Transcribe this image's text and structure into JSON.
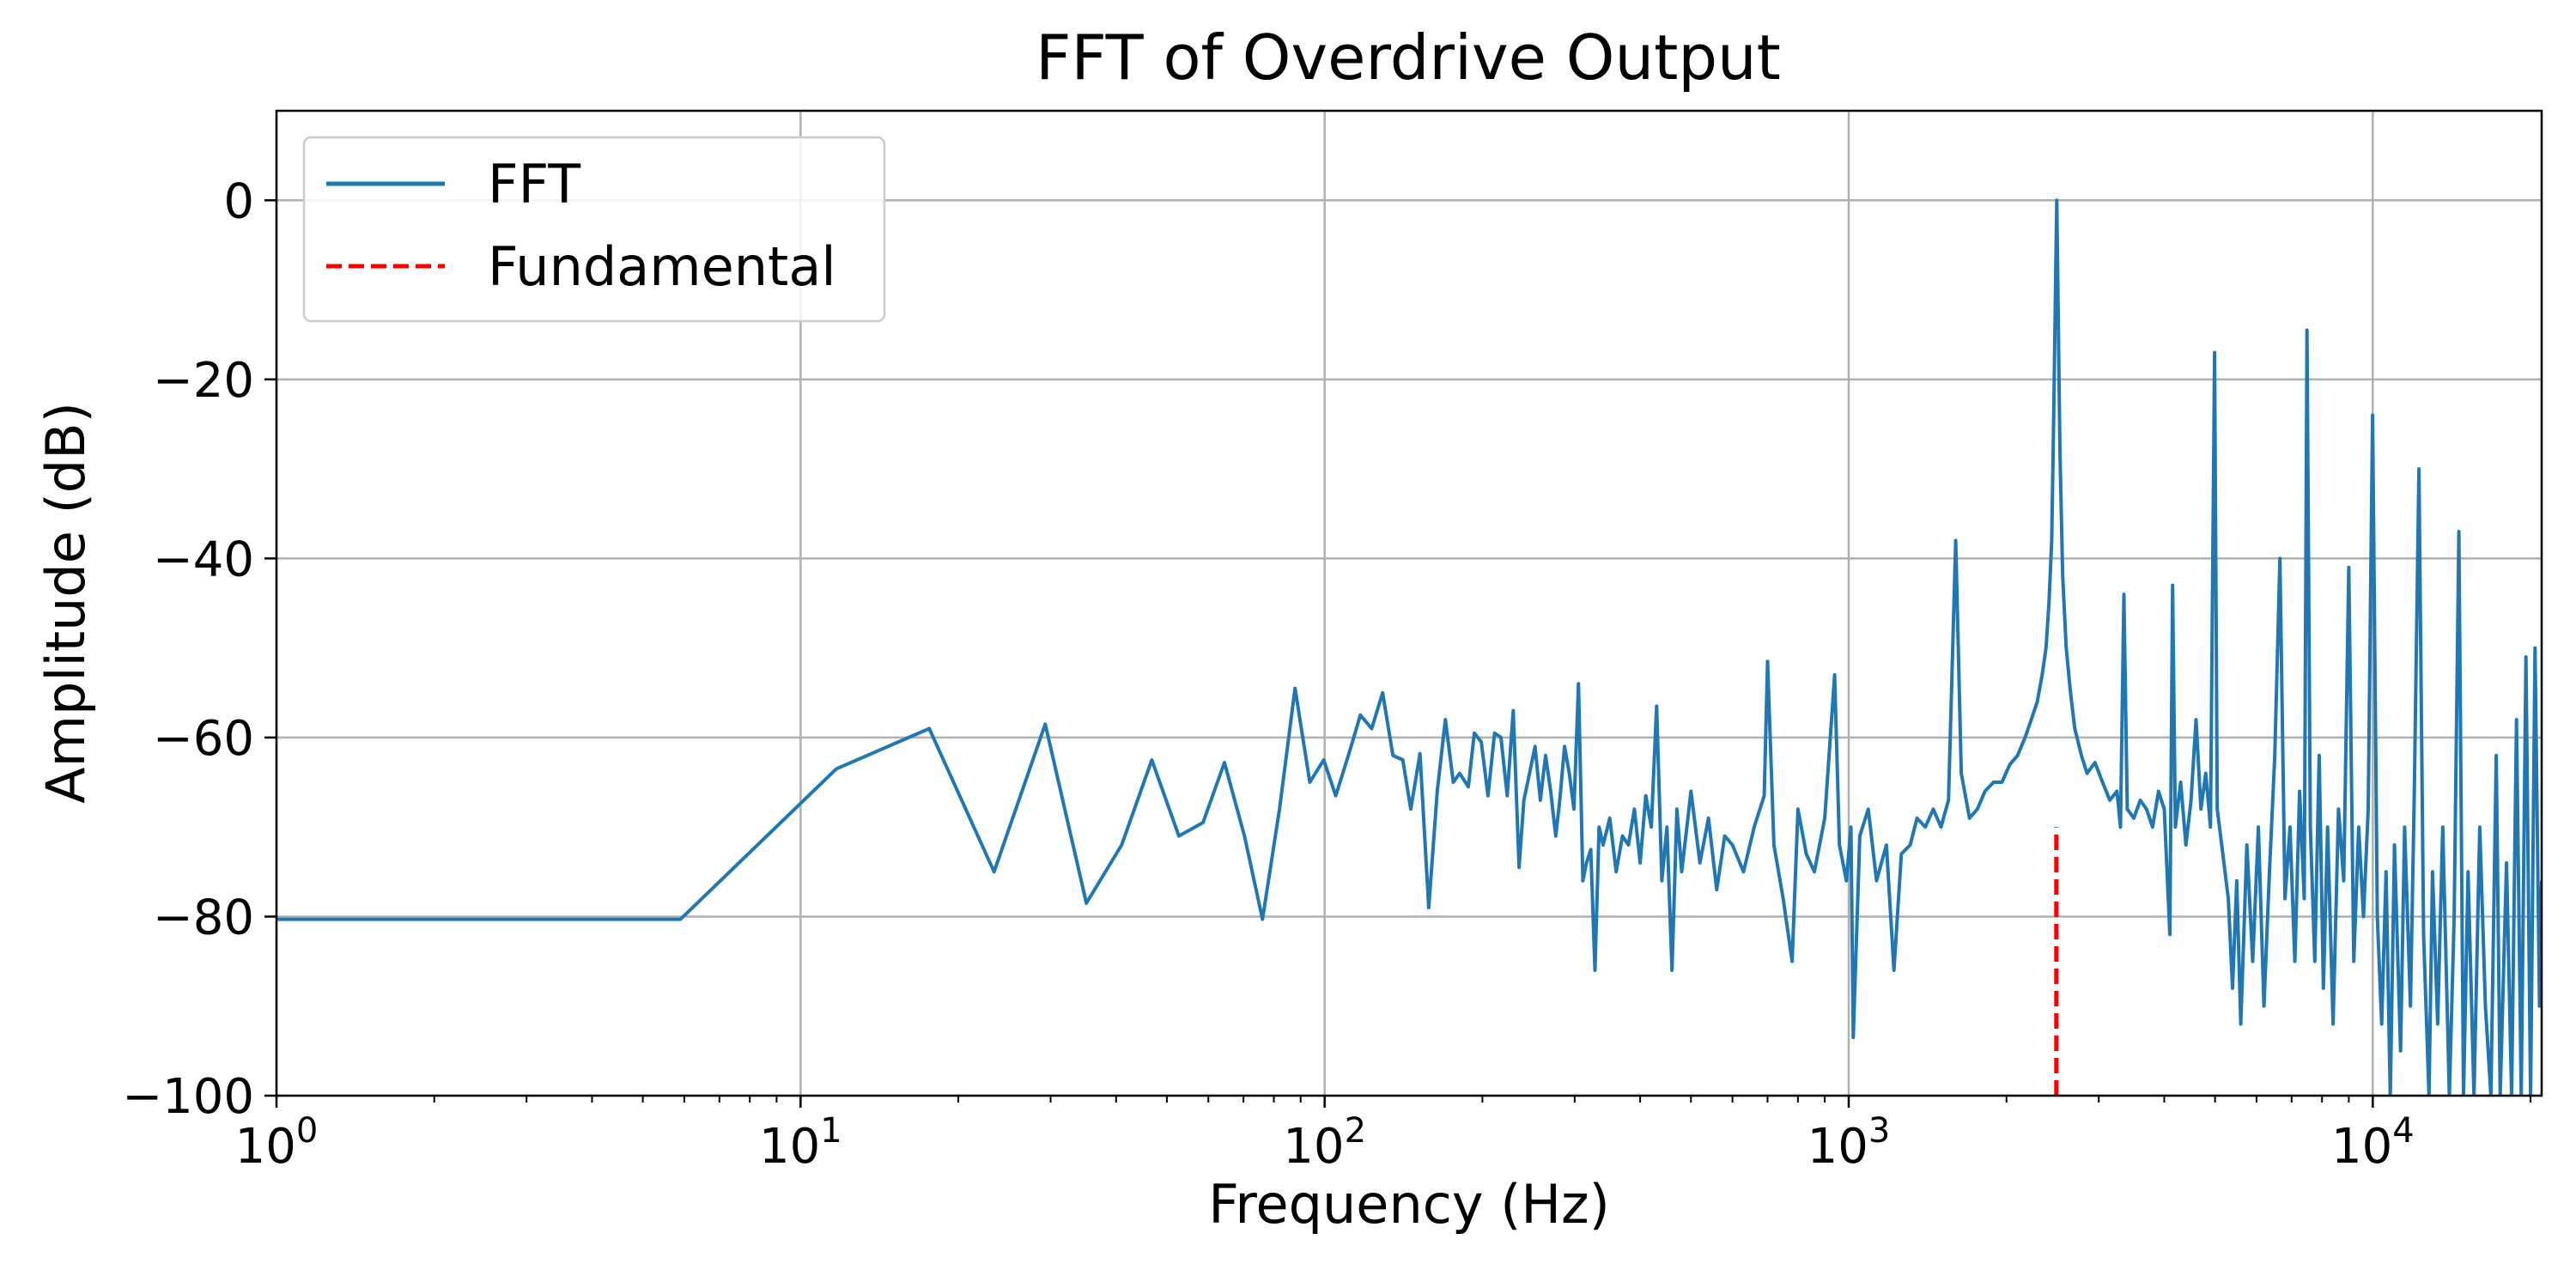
{
  "chart_data": {
    "type": "line",
    "title": "FFT of Overdrive Output",
    "xlabel": "Frequency (Hz)",
    "ylabel": "Amplitude (dB)",
    "x_scale": "log",
    "xlim": [
      1,
      21000
    ],
    "ylim": [
      -100,
      10
    ],
    "x_ticks": [
      {
        "value": 1,
        "base": "10",
        "exp": "0"
      },
      {
        "value": 10,
        "base": "10",
        "exp": "1"
      },
      {
        "value": 100,
        "base": "10",
        "exp": "2"
      },
      {
        "value": 1000,
        "base": "10",
        "exp": "3"
      },
      {
        "value": 10000,
        "base": "10",
        "exp": "4"
      }
    ],
    "y_ticks": [
      {
        "value": 0,
        "label": "0"
      },
      {
        "value": -20,
        "label": "−20"
      },
      {
        "value": -40,
        "label": "−40"
      },
      {
        "value": -60,
        "label": "−60"
      },
      {
        "value": -80,
        "label": "−80"
      },
      {
        "value": -100,
        "label": "−100"
      }
    ],
    "grid": true,
    "legend": {
      "position": "top-left",
      "entries": [
        "FFT",
        "Fundamental"
      ]
    },
    "colors": {
      "fft": "#1f77b4",
      "fundamental": "#ff0000",
      "grid": "#b0b0b0"
    },
    "series": [
      {
        "name": "FFT",
        "style": "solid",
        "points": [
          [
            1,
            -80.3
          ],
          [
            5.9,
            -80.3
          ],
          [
            11.7,
            -63.5
          ],
          [
            17.6,
            -59
          ],
          [
            23.4,
            -75
          ],
          [
            29.3,
            -58.5
          ],
          [
            35.1,
            -78.5
          ],
          [
            41,
            -72
          ],
          [
            46.8,
            -62.5
          ],
          [
            52.7,
            -71
          ],
          [
            58.6,
            -69.5
          ],
          [
            64.4,
            -62.8
          ],
          [
            70.3,
            -71
          ],
          [
            76.1,
            -80.3
          ],
          [
            82,
            -68
          ],
          [
            87.8,
            -54.5
          ],
          [
            93.7,
            -65
          ],
          [
            99.6,
            -62.5
          ],
          [
            105,
            -66.5
          ],
          [
            111,
            -62
          ],
          [
            117,
            -57.5
          ],
          [
            123,
            -59
          ],
          [
            129,
            -55
          ],
          [
            135,
            -62
          ],
          [
            141,
            -62.5
          ],
          [
            146,
            -68
          ],
          [
            152,
            -61.8
          ],
          [
            158,
            -79
          ],
          [
            164,
            -66
          ],
          [
            170,
            -58
          ],
          [
            176,
            -65
          ],
          [
            181,
            -64
          ],
          [
            188,
            -65.5
          ],
          [
            193,
            -59.5
          ],
          [
            199,
            -60.5
          ],
          [
            205,
            -66.5
          ],
          [
            211,
            -59.5
          ],
          [
            217,
            -60
          ],
          [
            223,
            -66.5
          ],
          [
            229,
            -57
          ],
          [
            235,
            -74.5
          ],
          [
            240,
            -67
          ],
          [
            246,
            -64
          ],
          [
            252,
            -61
          ],
          [
            258,
            -67
          ],
          [
            264,
            -62
          ],
          [
            270,
            -66
          ],
          [
            276,
            -71
          ],
          [
            281,
            -67
          ],
          [
            287,
            -61
          ],
          [
            293,
            -64
          ],
          [
            299,
            -68
          ],
          [
            305,
            -54
          ],
          [
            311,
            -76
          ],
          [
            316,
            -74
          ],
          [
            322,
            -72.5
          ],
          [
            328,
            -86
          ],
          [
            334,
            -70
          ],
          [
            340,
            -72
          ],
          [
            350,
            -69
          ],
          [
            360,
            -75
          ],
          [
            370,
            -71
          ],
          [
            380,
            -72
          ],
          [
            390,
            -68
          ],
          [
            400,
            -74
          ],
          [
            410,
            -66.5
          ],
          [
            420,
            -70
          ],
          [
            430,
            -56.5
          ],
          [
            440,
            -76
          ],
          [
            450,
            -70
          ],
          [
            460,
            -86
          ],
          [
            470,
            -68
          ],
          [
            480,
            -75
          ],
          [
            500,
            -66
          ],
          [
            520,
            -74
          ],
          [
            540,
            -69
          ],
          [
            560,
            -77
          ],
          [
            580,
            -71
          ],
          [
            600,
            -72
          ],
          [
            630,
            -75
          ],
          [
            660,
            -70
          ],
          [
            690,
            -66.5
          ],
          [
            700,
            -51.5
          ],
          [
            720,
            -72
          ],
          [
            750,
            -78
          ],
          [
            780,
            -85
          ],
          [
            800,
            -68
          ],
          [
            830,
            -73
          ],
          [
            860,
            -75
          ],
          [
            900,
            -69
          ],
          [
            940,
            -53
          ],
          [
            960,
            -72
          ],
          [
            990,
            -76
          ],
          [
            1010,
            -70
          ],
          [
            1020,
            -93.5
          ],
          [
            1050,
            -71
          ],
          [
            1090,
            -68
          ],
          [
            1130,
            -76
          ],
          [
            1180,
            -72
          ],
          [
            1220,
            -86
          ],
          [
            1260,
            -73
          ],
          [
            1310,
            -72
          ],
          [
            1350,
            -69
          ],
          [
            1400,
            -70
          ],
          [
            1450,
            -68
          ],
          [
            1500,
            -70
          ],
          [
            1550,
            -67
          ],
          [
            1600,
            -38
          ],
          [
            1640,
            -64
          ],
          [
            1700,
            -69
          ],
          [
            1760,
            -68
          ],
          [
            1820,
            -66
          ],
          [
            1890,
            -65
          ],
          [
            1960,
            -65
          ],
          [
            2030,
            -63
          ],
          [
            2100,
            -62
          ],
          [
            2170,
            -60
          ],
          [
            2230,
            -58
          ],
          [
            2290,
            -56
          ],
          [
            2340,
            -53
          ],
          [
            2380,
            -50
          ],
          [
            2410,
            -45
          ],
          [
            2440,
            -38
          ],
          [
            2460,
            -25
          ],
          [
            2480,
            -10
          ],
          [
            2495,
            0
          ],
          [
            2510,
            -12
          ],
          [
            2530,
            -28
          ],
          [
            2560,
            -42
          ],
          [
            2600,
            -50
          ],
          [
            2650,
            -55
          ],
          [
            2700,
            -59
          ],
          [
            2780,
            -62
          ],
          [
            2850,
            -64
          ],
          [
            2950,
            -62.8
          ],
          [
            3050,
            -65
          ],
          [
            3150,
            -67
          ],
          [
            3250,
            -66
          ],
          [
            3300,
            -70
          ],
          [
            3350,
            -44
          ],
          [
            3400,
            -68
          ],
          [
            3500,
            -69
          ],
          [
            3600,
            -67
          ],
          [
            3700,
            -68
          ],
          [
            3800,
            -70
          ],
          [
            3900,
            -66
          ],
          [
            4000,
            -68
          ],
          [
            4100,
            -82
          ],
          [
            4150,
            -43
          ],
          [
            4200,
            -70
          ],
          [
            4300,
            -65
          ],
          [
            4400,
            -72
          ],
          [
            4500,
            -67
          ],
          [
            4600,
            -58
          ],
          [
            4700,
            -68
          ],
          [
            4800,
            -64
          ],
          [
            4900,
            -70
          ],
          [
            4990,
            -17
          ],
          [
            5050,
            -68
          ],
          [
            5150,
            -72
          ],
          [
            5300,
            -78
          ],
          [
            5400,
            -88
          ],
          [
            5500,
            -76
          ],
          [
            5600,
            -92
          ],
          [
            5750,
            -72
          ],
          [
            5900,
            -85
          ],
          [
            6050,
            -70
          ],
          [
            6200,
            -90
          ],
          [
            6350,
            -75
          ],
          [
            6500,
            -62
          ],
          [
            6650,
            -40
          ],
          [
            6800,
            -78
          ],
          [
            6950,
            -70
          ],
          [
            7100,
            -85
          ],
          [
            7250,
            -66
          ],
          [
            7400,
            -78
          ],
          [
            7490,
            -14.5
          ],
          [
            7600,
            -70
          ],
          [
            7750,
            -85
          ],
          [
            7900,
            -62
          ],
          [
            8050,
            -88
          ],
          [
            8200,
            -70
          ],
          [
            8400,
            -92
          ],
          [
            8600,
            -68
          ],
          [
            8800,
            -76
          ],
          [
            9000,
            -41
          ],
          [
            9200,
            -85
          ],
          [
            9400,
            -70
          ],
          [
            9600,
            -80
          ],
          [
            9800,
            -68
          ],
          [
            9990,
            -24
          ],
          [
            10200,
            -80
          ],
          [
            10400,
            -92
          ],
          [
            10600,
            -75
          ],
          [
            10800,
            -100
          ],
          [
            11000,
            -72
          ],
          [
            11300,
            -95
          ],
          [
            11500,
            -70
          ],
          [
            11800,
            -90
          ],
          [
            12000,
            -66
          ],
          [
            12250,
            -30
          ],
          [
            12500,
            -82
          ],
          [
            12800,
            -100
          ],
          [
            13000,
            -75
          ],
          [
            13300,
            -92
          ],
          [
            13600,
            -70
          ],
          [
            14000,
            -100
          ],
          [
            14300,
            -80
          ],
          [
            14600,
            -37
          ],
          [
            14900,
            -100
          ],
          [
            15200,
            -75
          ],
          [
            15600,
            -100
          ],
          [
            16000,
            -70
          ],
          [
            16400,
            -90
          ],
          [
            16800,
            -100
          ],
          [
            17200,
            -62
          ],
          [
            17500,
            -100
          ],
          [
            18000,
            -74
          ],
          [
            18400,
            -100
          ],
          [
            18800,
            -58
          ],
          [
            19200,
            -100
          ],
          [
            19600,
            -51
          ],
          [
            20000,
            -100
          ],
          [
            20400,
            -50
          ],
          [
            20800,
            -90
          ],
          [
            21000,
            -76
          ]
        ]
      },
      {
        "name": "Fundamental",
        "style": "dashed",
        "points": [
          [
            2490,
            -100
          ],
          [
            2490,
            -70
          ]
        ]
      }
    ]
  }
}
